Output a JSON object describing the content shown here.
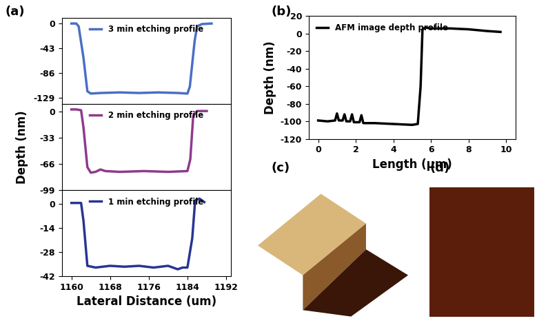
{
  "panel_labels": [
    "(a)",
    "(b)",
    "(c)",
    "(d)"
  ],
  "chart_data": [
    {
      "type": "line",
      "tick_labels": "y",
      "legend": "upper center",
      "xlim": [
        1158,
        1193
      ],
      "xticks": [
        1160,
        1168,
        1176,
        1184,
        1192
      ],
      "ylim": [
        -140,
        10
      ],
      "yticks": [
        0,
        -43,
        -86,
        -129
      ],
      "series": [
        {
          "name": "3 min etching profile",
          "color": "#4a6fc4",
          "x": [
            1160,
            1161,
            1161.5,
            1162.5,
            1163.3,
            1164,
            1166,
            1170,
            1174,
            1178,
            1182,
            1184,
            1184.5,
            1185.5,
            1186,
            1187,
            1189
          ],
          "values": [
            0,
            0,
            -5,
            -60,
            -118,
            -122,
            -121,
            -120,
            -121,
            -120,
            -121,
            -122,
            -110,
            -30,
            -5,
            -1,
            0
          ]
        }
      ]
    },
    {
      "type": "line",
      "tick_labels": "y",
      "legend": "upper center",
      "ylabel": "Depth (nm)",
      "xlim": [
        1158,
        1193
      ],
      "xticks": [
        1160,
        1168,
        1176,
        1184,
        1192
      ],
      "ylim": [
        -99,
        10
      ],
      "yticks": [
        0,
        -33,
        -66,
        -99
      ],
      "series": [
        {
          "name": "2 min etching profile",
          "color": "#8e3a8e",
          "x": [
            1160,
            1161,
            1162,
            1162.5,
            1163.3,
            1164,
            1165,
            1166,
            1167,
            1170,
            1175,
            1180,
            1184,
            1184.6,
            1185.2,
            1186,
            1188
          ],
          "values": [
            3,
            3,
            2,
            -20,
            -70,
            -77,
            -76,
            -73,
            -75,
            -76,
            -75,
            -76,
            -75,
            -60,
            -5,
            1,
            1
          ]
        }
      ]
    },
    {
      "type": "line",
      "legend": "upper center",
      "xlabel": "Lateral Distance (um)",
      "xlim": [
        1158,
        1193
      ],
      "xticks": [
        1160,
        1168,
        1176,
        1184,
        1192
      ],
      "ylim": [
        -42,
        8
      ],
      "yticks": [
        0,
        -14,
        -28,
        -42
      ],
      "series": [
        {
          "name": "1 min etching profile",
          "color": "#283593",
          "x": [
            1160,
            1162,
            1162.5,
            1163.3,
            1165,
            1168,
            1171,
            1174,
            1177,
            1180,
            1182,
            1183,
            1184,
            1185,
            1185.6,
            1186.5,
            1187.5
          ],
          "values": [
            0.5,
            0.5,
            -10,
            -36,
            -37,
            -36,
            -36.5,
            -36,
            -37,
            -36,
            -38,
            -37,
            -37,
            -20,
            2,
            3,
            1
          ]
        }
      ]
    },
    {
      "type": "line",
      "legend": "upper left",
      "xlabel": "Length (μm)",
      "ylabel": "Depth (nm)",
      "xlim": [
        -0.5,
        10.5
      ],
      "xticks": [
        0,
        2,
        4,
        6,
        8,
        10
      ],
      "ylim": [
        -120,
        20
      ],
      "yticks": [
        -120,
        -100,
        -80,
        -60,
        -40,
        -20,
        0,
        20
      ],
      "series": [
        {
          "name": "AFM image depth profile",
          "color": "#000000",
          "x": [
            0,
            0.5,
            0.9,
            1.0,
            1.1,
            1.3,
            1.4,
            1.5,
            1.7,
            1.8,
            1.9,
            2.2,
            2.3,
            2.4,
            3,
            4,
            5,
            5.3,
            5.45,
            5.55,
            5.7,
            6,
            7,
            8,
            9,
            9.7
          ],
          "values": [
            -99,
            -100,
            -99,
            -91,
            -99,
            -99,
            -92,
            -100,
            -100,
            -92,
            -101,
            -101,
            -93,
            -102,
            -102,
            -103,
            -104,
            -103,
            -60,
            5,
            7,
            6,
            6,
            5,
            3,
            2
          ]
        }
      ]
    }
  ]
}
